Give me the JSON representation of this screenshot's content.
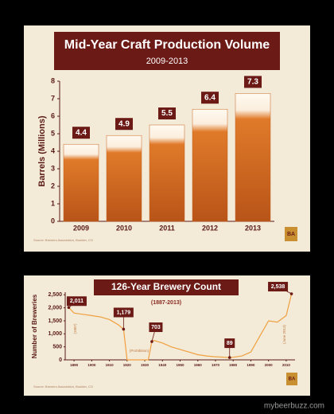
{
  "chart_data": [
    {
      "type": "bar",
      "title": "Mid-Year Craft Production Volume",
      "subtitle": "2009-2013",
      "y_label": "Barrels (Millions)",
      "categories": [
        "2009",
        "2010",
        "2011",
        "2012",
        "2013"
      ],
      "values": [
        4.4,
        4.9,
        5.5,
        6.4,
        7.3
      ],
      "color": "#c8641e",
      "ylim": [
        0,
        8
      ],
      "yticks": [
        0,
        1,
        2,
        3,
        4,
        5,
        6,
        7,
        8
      ],
      "source": "Source: Brewers Association, Boulder, CO",
      "logo": "BA"
    },
    {
      "type": "line",
      "title": "126-Year Brewery Count",
      "subtitle": "(1887-2013)",
      "y_label": "Number of Breweries",
      "x": [
        1887,
        1890,
        1895,
        1900,
        1905,
        1910,
        1915,
        1918,
        1920,
        1932,
        1934,
        1935,
        1940,
        1945,
        1950,
        1955,
        1960,
        1965,
        1970,
        1975,
        1978,
        1980,
        1985,
        1990,
        1995,
        2000,
        2005,
        2010,
        2013
      ],
      "values": [
        2011,
        1800,
        1750,
        1700,
        1650,
        1550,
        1350,
        1179,
        0,
        0,
        703,
        750,
        650,
        500,
        400,
        300,
        200,
        150,
        120,
        100,
        89,
        100,
        150,
        300,
        900,
        1500,
        1450,
        1700,
        2538
      ],
      "color": "#f0a040",
      "xlim": [
        1885,
        2015
      ],
      "xticks": [
        1890,
        1900,
        1910,
        1920,
        1930,
        1940,
        1950,
        1960,
        1970,
        1980,
        1990,
        2000,
        2010
      ],
      "ylim": [
        0,
        2600
      ],
      "yticks": [
        0,
        500,
        {
          "value": 1000,
          "label": "1,000"
        },
        {
          "value": 1500,
          "label": "1,500"
        },
        {
          "value": 2000,
          "label": "2,000"
        },
        {
          "value": 2500,
          "label": "2,500"
        }
      ],
      "annotations": [
        {
          "x": 1887,
          "value": 2011,
          "label": "2,011"
        },
        {
          "x": 1918,
          "value": 1179,
          "label": "1,179"
        },
        {
          "x": 1934,
          "value": 703,
          "label": "703"
        },
        {
          "x": 1978,
          "value": 89,
          "label": "89"
        },
        {
          "x": 2013,
          "value": 2538,
          "label": "2,538"
        }
      ],
      "notes": [
        "(1887)",
        "(Prohibition)",
        "(June 2013)"
      ],
      "source": "Source: Brewers Association, Boulder, CO",
      "logo": "BA"
    }
  ],
  "watermark": "mybeerbuzz.com"
}
